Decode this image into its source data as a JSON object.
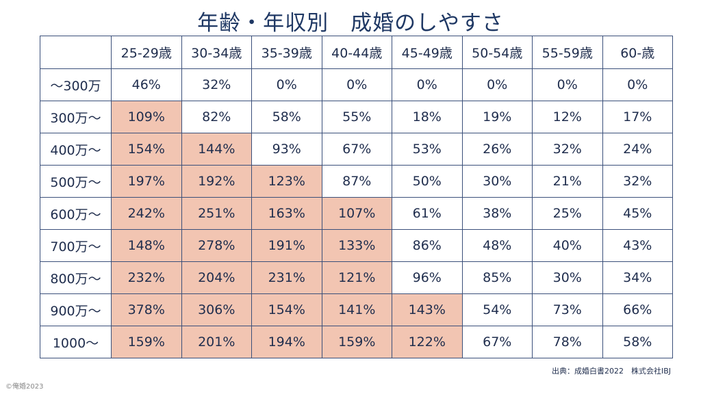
{
  "title": "年齢・年収別　成婚のしやすさ",
  "source": "出典：成婚白書2022　株式会社IBJ",
  "copyright": "©俺婚2023",
  "colors": {
    "highlight": "#f2c5b2",
    "border": "#3a4f7a",
    "title": "#1f3864"
  },
  "chart_data": {
    "type": "table",
    "title": "年齢・年収別　成婚のしやすさ",
    "columns": [
      "25-29歳",
      "30-34歳",
      "35-39歳",
      "40-44歳",
      "45-49歳",
      "50-54歳",
      "55-59歳",
      "60-歳"
    ],
    "rows": [
      {
        "label": "〜300万",
        "values": [
          "46%",
          "32%",
          "0%",
          "0%",
          "0%",
          "0%",
          "0%",
          "0%"
        ]
      },
      {
        "label": "300万〜",
        "values": [
          "109%",
          "82%",
          "58%",
          "55%",
          "18%",
          "19%",
          "12%",
          "17%"
        ]
      },
      {
        "label": "400万〜",
        "values": [
          "154%",
          "144%",
          "93%",
          "67%",
          "53%",
          "26%",
          "32%",
          "24%"
        ]
      },
      {
        "label": "500万〜",
        "values": [
          "197%",
          "192%",
          "123%",
          "87%",
          "50%",
          "30%",
          "21%",
          "32%"
        ]
      },
      {
        "label": "600万〜",
        "values": [
          "242%",
          "251%",
          "163%",
          "107%",
          "61%",
          "38%",
          "25%",
          "45%"
        ]
      },
      {
        "label": "700万〜",
        "values": [
          "148%",
          "278%",
          "191%",
          "133%",
          "86%",
          "48%",
          "40%",
          "43%"
        ]
      },
      {
        "label": "800万〜",
        "values": [
          "232%",
          "204%",
          "231%",
          "121%",
          "96%",
          "85%",
          "30%",
          "34%"
        ]
      },
      {
        "label": "900万〜",
        "values": [
          "378%",
          "306%",
          "154%",
          "141%",
          "143%",
          "54%",
          "73%",
          "66%"
        ]
      },
      {
        "label": "1000〜",
        "values": [
          "159%",
          "201%",
          "194%",
          "159%",
          "122%",
          "67%",
          "78%",
          "58%"
        ]
      }
    ],
    "highlight_rule": "value >= 100%"
  }
}
